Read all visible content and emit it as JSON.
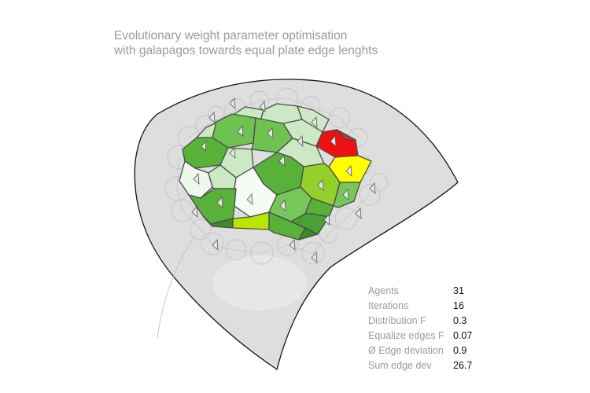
{
  "title": {
    "line1": "Evolutionary weight parameter optimisation",
    "line2": "with galapagos towards equal plate edge lenghts"
  },
  "stats": [
    {
      "label": "Agents",
      "value": "31"
    },
    {
      "label": "Iterations",
      "value": "16"
    },
    {
      "label": "Distribution F",
      "value": "0.3"
    },
    {
      "label": "Equalize edges F",
      "value": "0.07"
    },
    {
      "label": "Ø Edge deviation",
      "value": "0.9"
    },
    {
      "label": "Sum edge dev",
      "value": "26.7"
    }
  ],
  "colors": {
    "surface_fill": "#dedede",
    "surface_edge": "#111111",
    "plate_outline": "#4a4a4a",
    "green_dark": "#58b23a",
    "green_mid": "#76c65a",
    "green_light": "#cde8c4",
    "green_pale": "#eef7ec",
    "lime": "#93d12a",
    "yellow_green": "#b9e600",
    "yellow": "#ffff00",
    "red": "#ee1111"
  }
}
